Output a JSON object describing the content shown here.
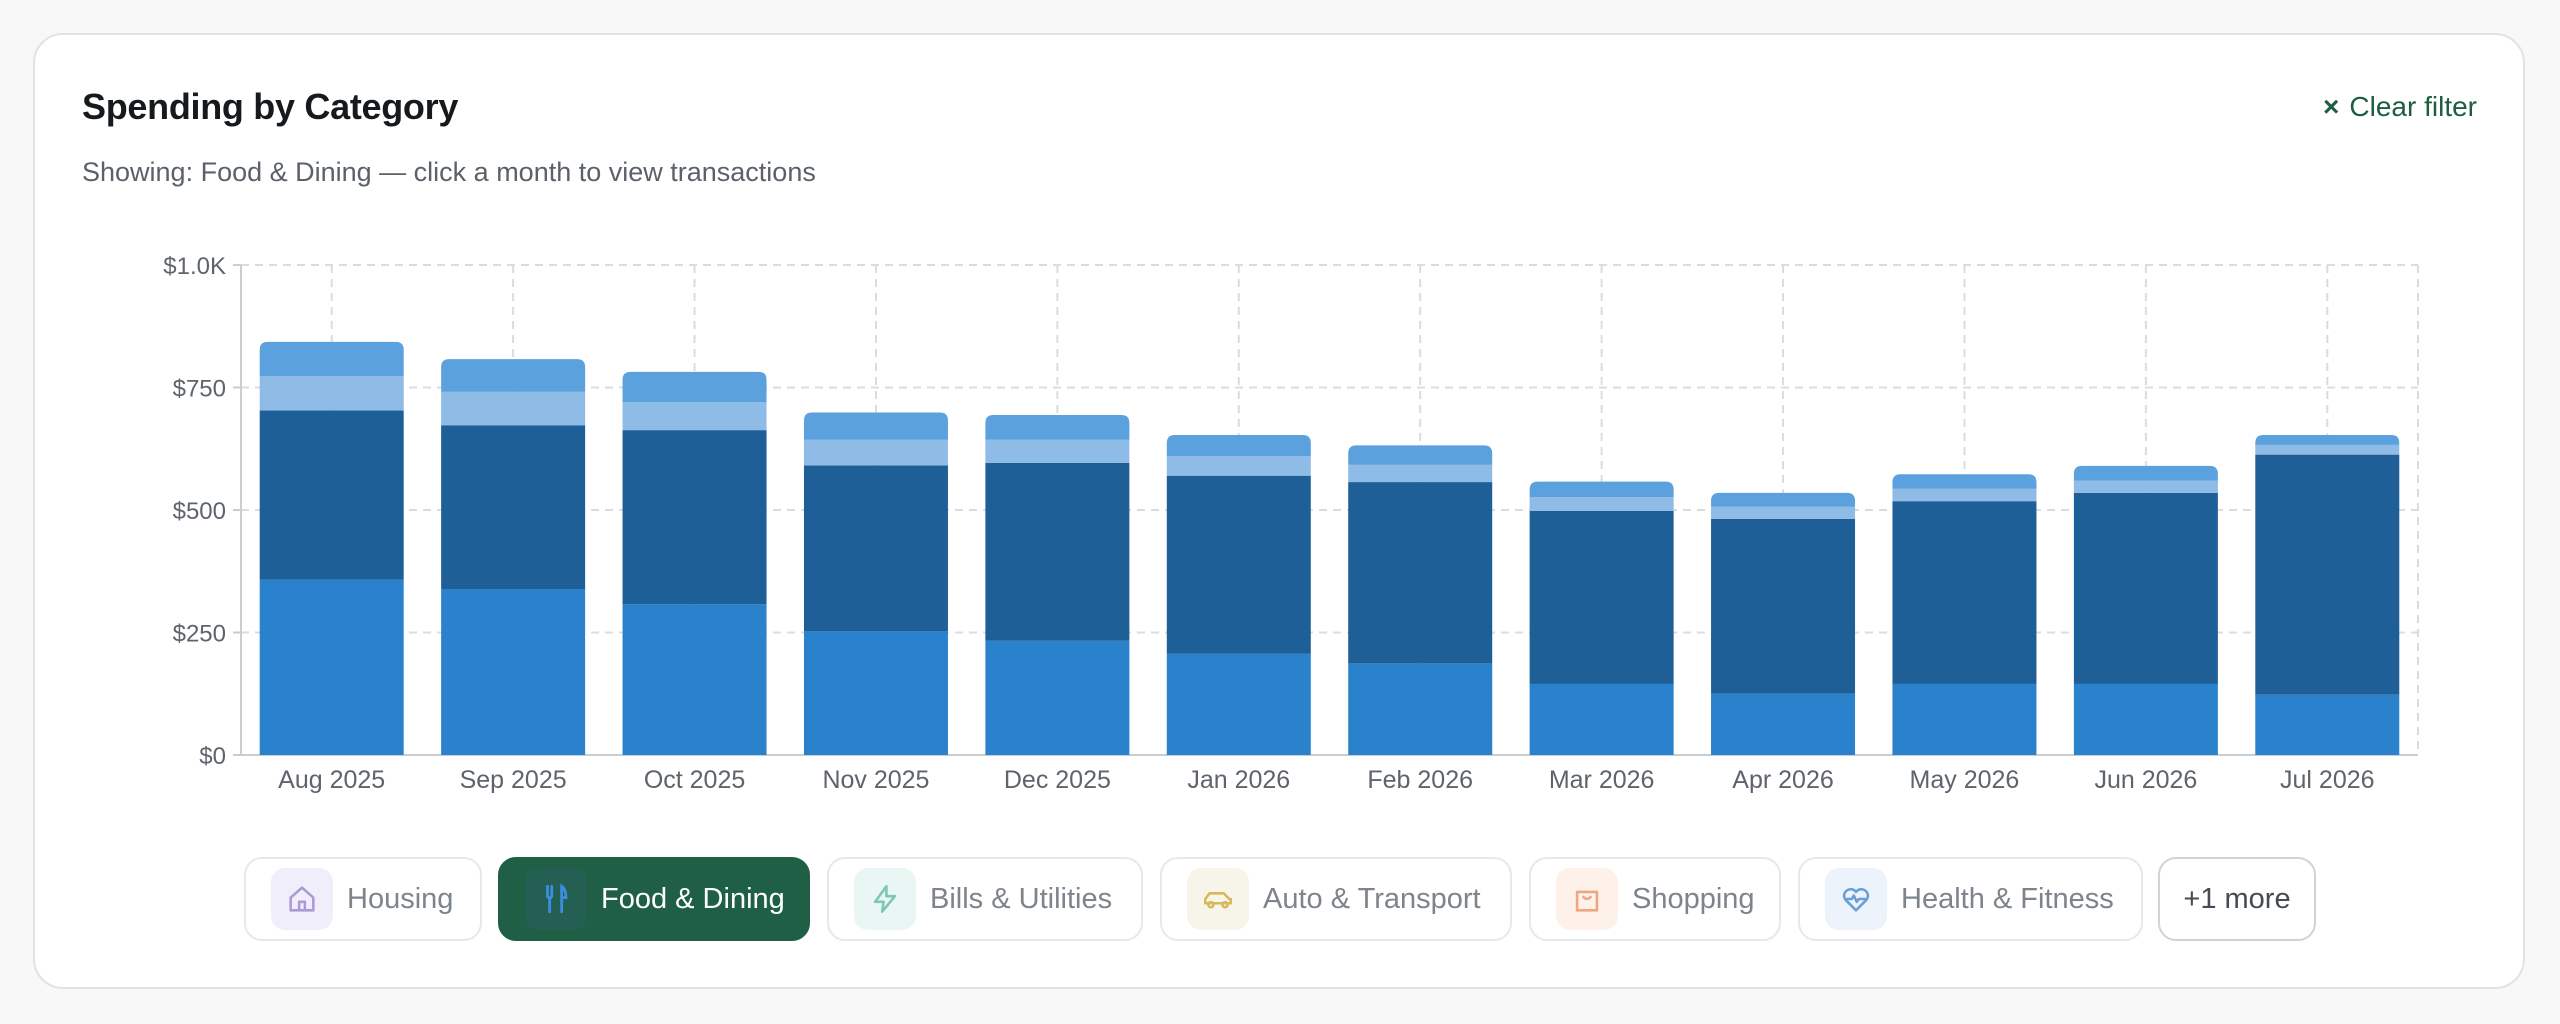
{
  "card": {
    "title": "Spending by Category",
    "subtitle": "Showing: Food & Dining — click a month to view transactions",
    "clear_filter_icon": "×",
    "clear_filter_label": "Clear filter"
  },
  "chart_data": {
    "type": "bar",
    "stacked": true,
    "categories": [
      "Aug 2025",
      "Sep 2025",
      "Oct 2025",
      "Nov 2025",
      "Dec 2025",
      "Jan 2026",
      "Feb 2026",
      "Mar 2026",
      "Apr 2026",
      "May 2026",
      "Jun 2026",
      "Jul 2026"
    ],
    "series": [
      {
        "color": "#2b82cc",
        "values": [
          358,
          338,
          308,
          253,
          233,
          207,
          187,
          145,
          125,
          145,
          145,
          123
        ]
      },
      {
        "color": "#1f5f97",
        "values": [
          345,
          335,
          355,
          338,
          363,
          363,
          370,
          353,
          357,
          373,
          390,
          490
        ]
      },
      {
        "color": "#8fbce6",
        "values": [
          70,
          68,
          57,
          53,
          48,
          40,
          35,
          28,
          25,
          25,
          25,
          20
        ]
      },
      {
        "color": "#5ba1de",
        "values": [
          70,
          67,
          62,
          55,
          50,
          43,
          40,
          32,
          28,
          30,
          30,
          20
        ]
      }
    ],
    "ylim": [
      0,
      1000
    ],
    "yticks": [
      0,
      250,
      500,
      750,
      1000
    ],
    "ytick_labels": [
      "$0",
      "$250",
      "$500",
      "$750",
      "$1.0K"
    ],
    "grid": true
  },
  "filters": {
    "items": [
      {
        "label": "Housing",
        "icon": "house-icon",
        "active": false,
        "icon_bg": "#f1eefb",
        "icon_color": "#a99ad8"
      },
      {
        "label": "Food & Dining",
        "icon": "utensils-icon",
        "active": true,
        "icon_bg": "#235f52",
        "icon_color": "#3b8de0"
      },
      {
        "label": "Bills & Utilities",
        "icon": "lightning-icon",
        "active": false,
        "icon_bg": "#e9f6f3",
        "icon_color": "#7cc8b6"
      },
      {
        "label": "Auto & Transport",
        "icon": "car-icon",
        "active": false,
        "icon_bg": "#f7f4e9",
        "icon_color": "#d9b85a"
      },
      {
        "label": "Shopping",
        "icon": "shopping-bag-icon",
        "active": false,
        "icon_bg": "#fdf1ea",
        "icon_color": "#eea682"
      },
      {
        "label": "Health & Fitness",
        "icon": "heart-pulse-icon",
        "active": false,
        "icon_bg": "#ecf3fb",
        "icon_color": "#6a9fd6"
      }
    ],
    "more_label": "+1 more"
  }
}
